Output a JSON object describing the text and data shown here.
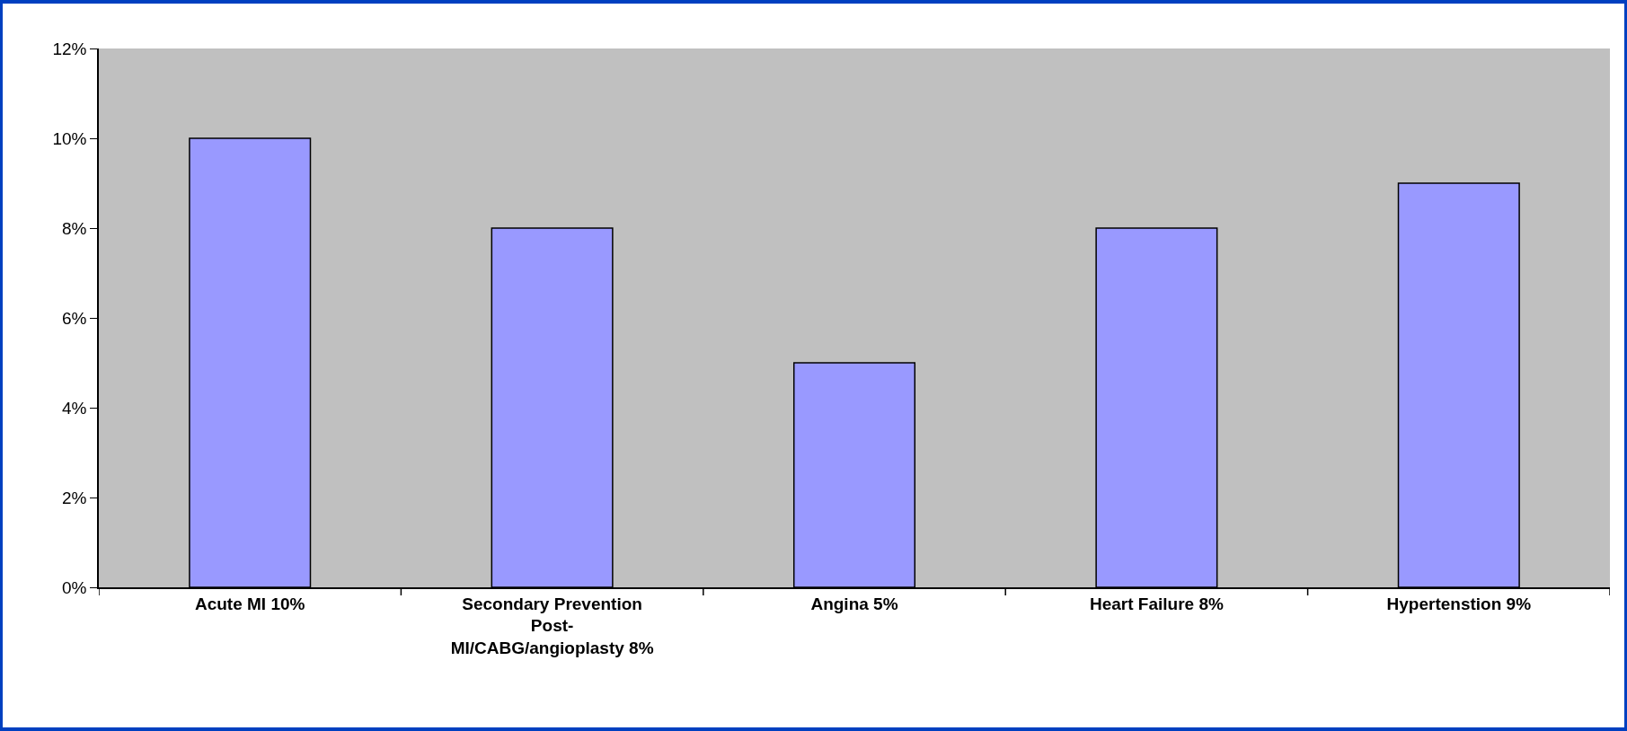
{
  "chart_data": {
    "type": "bar",
    "categories": [
      "Acute MI 10%",
      "Secondary Prevention Post-MI/CABG/angioplasty 8%",
      "Angina 5%",
      "Heart Failure 8%",
      "Hypertenstion 9%"
    ],
    "values": [
      10,
      8,
      5,
      8,
      9
    ],
    "color": "#9999ff",
    "ylim": [
      0,
      12
    ],
    "yticks": [
      {
        "value": 0,
        "label": "0%"
      },
      {
        "value": 2,
        "label": "2%"
      },
      {
        "value": 4,
        "label": "4%"
      },
      {
        "value": 6,
        "label": "6%"
      },
      {
        "value": 8,
        "label": "8%"
      },
      {
        "value": 10,
        "label": "10%"
      },
      {
        "value": 12,
        "label": "12%"
      }
    ],
    "grid": false
  }
}
